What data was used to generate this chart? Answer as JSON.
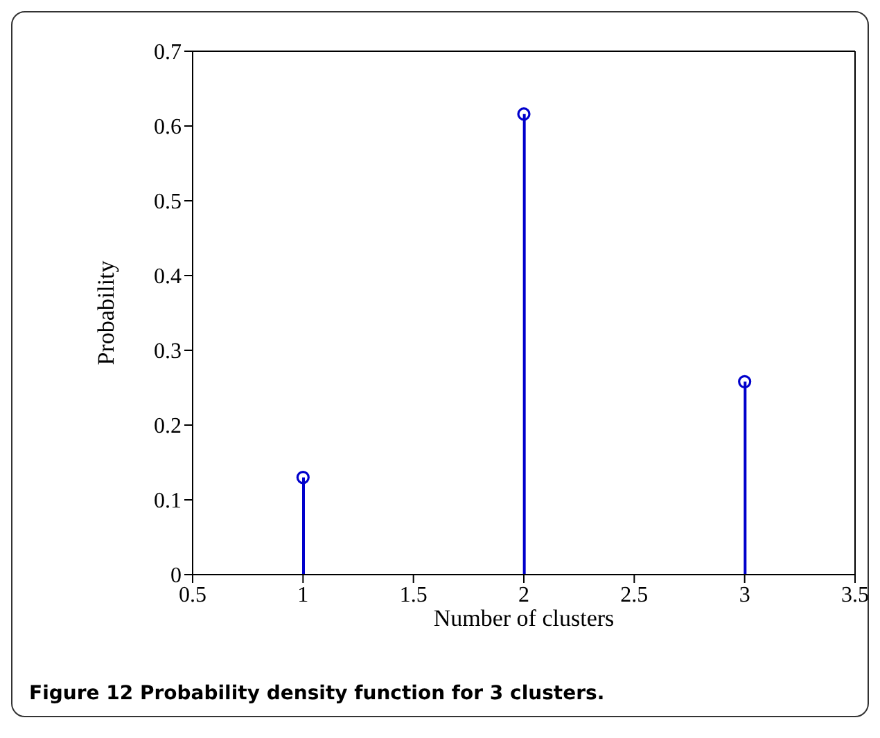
{
  "chart_data": {
    "type": "lollipop",
    "xlabel": "Number of clusters",
    "ylabel": "Probability",
    "x": [
      1,
      2,
      3
    ],
    "values": [
      0.13,
      0.616,
      0.258
    ],
    "color": "#0000cc",
    "marker": "circle",
    "grid": false,
    "legend": false,
    "xlim": [
      0.5,
      3.5
    ],
    "xticks": [
      0.5,
      1,
      1.5,
      2,
      2.5,
      3,
      3.5
    ],
    "ylim": [
      0,
      0.7
    ],
    "yticks": [
      0,
      0.1,
      0.2,
      0.3,
      0.4,
      0.5,
      0.6,
      0.7
    ],
    "annotations": [
      "Figure 12 Probability density function for 3 clusters."
    ]
  }
}
